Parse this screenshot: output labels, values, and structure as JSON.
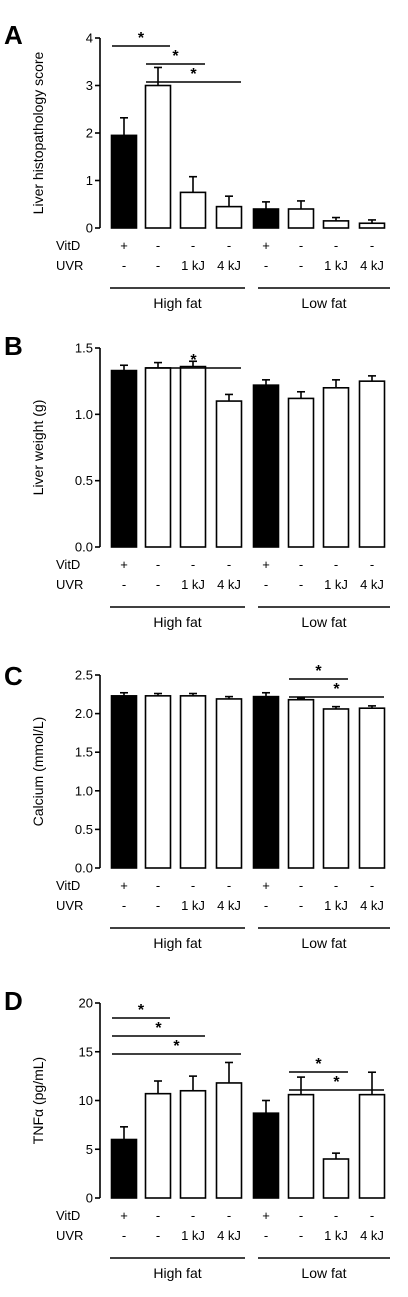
{
  "chart_data": [
    {
      "type": "bar",
      "panel": "A",
      "ylabel": "Liver histopathology score",
      "ylim": [
        0,
        4
      ],
      "yticks": [
        "0",
        "1",
        "2",
        "3",
        "4"
      ],
      "categories": [
        "HF VitD+",
        "HF control",
        "HF 1 kJ",
        "HF 4 kJ",
        "LF VitD+",
        "LF control",
        "LF 1 kJ",
        "LF 4 kJ"
      ],
      "values": [
        1.95,
        3.0,
        0.75,
        0.45,
        0.4,
        0.4,
        0.15,
        0.1
      ],
      "errors": [
        0.37,
        0.38,
        0.33,
        0.22,
        0.15,
        0.17,
        0.07,
        0.07
      ],
      "fills": [
        "#000000",
        "#ffffff",
        "#ffffff",
        "#ffffff",
        "#000000",
        "#ffffff",
        "#ffffff",
        "#ffffff"
      ],
      "significance": [
        {
          "from": 0,
          "to": 1,
          "label": "*"
        },
        {
          "from": 1,
          "to": 2,
          "label": "*"
        },
        {
          "from": 1,
          "to": 3,
          "label": "*"
        }
      ]
    },
    {
      "type": "bar",
      "panel": "B",
      "ylabel": "Liver weight (g)",
      "ylim": [
        0,
        1.5
      ],
      "yticks": [
        "0.0",
        "0.5",
        "1.0",
        "1.5"
      ],
      "categories": [
        "HF VitD+",
        "HF control",
        "HF 1 kJ",
        "HF 4 kJ",
        "LF VitD+",
        "LF control",
        "LF 1 kJ",
        "LF 4 kJ"
      ],
      "values": [
        1.33,
        1.35,
        1.36,
        1.1,
        1.22,
        1.12,
        1.2,
        1.25
      ],
      "errors": [
        0.04,
        0.04,
        0.04,
        0.05,
        0.04,
        0.05,
        0.06,
        0.04
      ],
      "fills": [
        "#000000",
        "#ffffff",
        "#ffffff",
        "#ffffff",
        "#000000",
        "#ffffff",
        "#ffffff",
        "#ffffff"
      ],
      "significance": [
        {
          "from": 1,
          "to": 3,
          "label": "*"
        }
      ]
    },
    {
      "type": "bar",
      "panel": "C",
      "ylabel": "Calcium (mmol/L)",
      "ylim": [
        0,
        2.5
      ],
      "yticks": [
        "0.0",
        "0.5",
        "1.0",
        "1.5",
        "2.0",
        "2.5"
      ],
      "categories": [
        "HF VitD+",
        "HF control",
        "HF 1 kJ",
        "HF 4 kJ",
        "LF VitD+",
        "LF control",
        "LF 1 kJ",
        "LF 4 kJ"
      ],
      "values": [
        2.23,
        2.23,
        2.23,
        2.19,
        2.22,
        2.18,
        2.06,
        2.07
      ],
      "errors": [
        0.04,
        0.03,
        0.03,
        0.03,
        0.05,
        0.02,
        0.03,
        0.03
      ],
      "fills": [
        "#000000",
        "#ffffff",
        "#ffffff",
        "#ffffff",
        "#000000",
        "#ffffff",
        "#ffffff",
        "#ffffff"
      ],
      "significance": [
        {
          "from": 5,
          "to": 6,
          "label": "*"
        },
        {
          "from": 5,
          "to": 7,
          "label": "*"
        }
      ]
    },
    {
      "type": "bar",
      "panel": "D",
      "ylabel": "TNFα (pg/mL)",
      "ylim": [
        0,
        20
      ],
      "yticks": [
        "0",
        "5",
        "10",
        "15",
        "20"
      ],
      "categories": [
        "HF VitD+",
        "HF control",
        "HF 1 kJ",
        "HF 4 kJ",
        "LF VitD+",
        "LF control",
        "LF 1 kJ",
        "LF 4 kJ"
      ],
      "values": [
        6.0,
        10.7,
        11.0,
        11.8,
        8.7,
        10.6,
        4.0,
        10.6
      ],
      "errors": [
        1.3,
        1.3,
        1.5,
        2.1,
        1.3,
        1.8,
        0.6,
        2.3
      ],
      "fills": [
        "#000000",
        "#ffffff",
        "#ffffff",
        "#ffffff",
        "#000000",
        "#ffffff",
        "#ffffff",
        "#ffffff"
      ],
      "significance": [
        {
          "from": 0,
          "to": 1,
          "label": "*"
        },
        {
          "from": 0,
          "to": 2,
          "label": "*"
        },
        {
          "from": 0,
          "to": 3,
          "label": "*"
        },
        {
          "from": 5,
          "to": 6,
          "label": "*"
        },
        {
          "from": 5,
          "to": 7,
          "label": "*"
        }
      ]
    }
  ],
  "conditions": {
    "vitd_label": "VitD",
    "uvr_label": "UVR",
    "vitd_values": [
      "+",
      "-",
      "-",
      "-",
      "+",
      "-",
      "-",
      "-"
    ],
    "uvr_values": [
      "-",
      "-",
      "1 kJ",
      "4 kJ",
      "-",
      "-",
      "1 kJ",
      "4 kJ"
    ],
    "groups": [
      "High fat",
      "Low fat"
    ]
  }
}
